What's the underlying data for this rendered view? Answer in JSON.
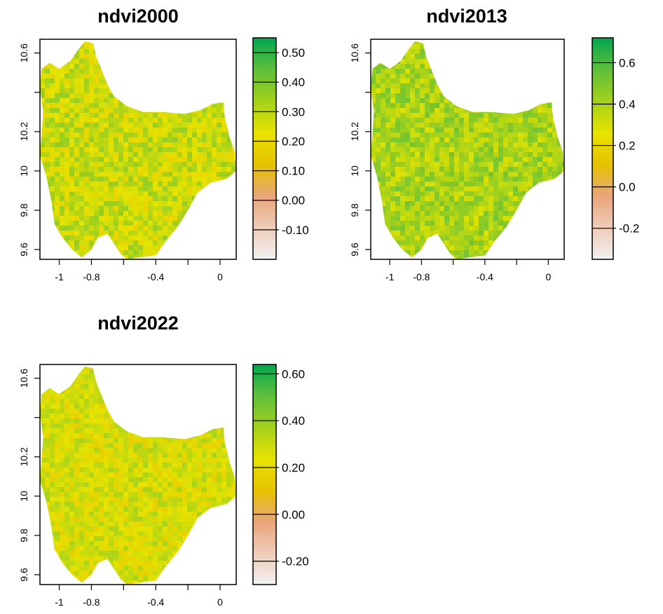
{
  "panels": [
    {
      "title": "ndvi2000",
      "x_ticks": [
        {
          "value": -1,
          "label": "-1"
        },
        {
          "value": -0.8,
          "label": "-0.8"
        },
        {
          "value": -0.6,
          "label": ""
        },
        {
          "value": -0.4,
          "label": "-0.4"
        },
        {
          "value": -0.2,
          "label": ""
        },
        {
          "value": 0,
          "label": "0"
        }
      ],
      "y_ticks": [
        {
          "value": 9.6,
          "label": "9.6"
        },
        {
          "value": 9.8,
          "label": "9.8"
        },
        {
          "value": 10,
          "label": "10"
        },
        {
          "value": 10.2,
          "label": "10.2"
        },
        {
          "value": 10.4,
          "label": ""
        },
        {
          "value": 10.6,
          "label": "10.6"
        }
      ],
      "legend": {
        "min": -0.2,
        "max": 0.55,
        "ticks": [
          {
            "value": 0.5,
            "label": "0.50"
          },
          {
            "value": 0.4,
            "label": "0.40"
          },
          {
            "value": 0.3,
            "label": "0.30"
          },
          {
            "value": 0.2,
            "label": "0.20"
          },
          {
            "value": 0.1,
            "label": "0.10"
          },
          {
            "value": 0.0,
            "label": "0.00"
          },
          {
            "value": -0.1,
            "label": "-0.10"
          }
        ]
      },
      "map_value_range": [
        0.18,
        0.36
      ]
    },
    {
      "title": "ndvi2013",
      "x_ticks": [
        {
          "value": -1,
          "label": "-1"
        },
        {
          "value": -0.8,
          "label": "-0.8"
        },
        {
          "value": -0.6,
          "label": ""
        },
        {
          "value": -0.4,
          "label": "-0.4"
        },
        {
          "value": -0.2,
          "label": ""
        },
        {
          "value": 0,
          "label": "0"
        }
      ],
      "y_ticks": [
        {
          "value": 9.6,
          "label": "9.6"
        },
        {
          "value": 9.8,
          "label": "9.8"
        },
        {
          "value": 10,
          "label": "10"
        },
        {
          "value": 10.2,
          "label": "10.2"
        },
        {
          "value": 10.4,
          "label": ""
        },
        {
          "value": 10.6,
          "label": "10.6"
        }
      ],
      "legend": {
        "min": -0.35,
        "max": 0.72,
        "ticks": [
          {
            "value": 0.6,
            "label": "0.6"
          },
          {
            "value": 0.4,
            "label": "0.4"
          },
          {
            "value": 0.2,
            "label": "0.2"
          },
          {
            "value": 0.0,
            "label": "0.0"
          },
          {
            "value": -0.2,
            "label": "-0.2"
          }
        ]
      },
      "map_value_range": [
        0.28,
        0.52
      ]
    },
    {
      "title": "ndvi2022",
      "x_ticks": [
        {
          "value": -1,
          "label": "-1"
        },
        {
          "value": -0.8,
          "label": "-0.8"
        },
        {
          "value": -0.6,
          "label": ""
        },
        {
          "value": -0.4,
          "label": "-0.4"
        },
        {
          "value": -0.2,
          "label": ""
        },
        {
          "value": 0,
          "label": "0"
        }
      ],
      "y_ticks": [
        {
          "value": 9.6,
          "label": "9.6"
        },
        {
          "value": 9.8,
          "label": "9.8"
        },
        {
          "value": 10,
          "label": "10"
        },
        {
          "value": 10.2,
          "label": "10.2"
        },
        {
          "value": 10.4,
          "label": ""
        },
        {
          "value": 10.6,
          "label": "10.6"
        }
      ],
      "legend": {
        "min": -0.3,
        "max": 0.64,
        "ticks": [
          {
            "value": 0.6,
            "label": "0.60"
          },
          {
            "value": 0.4,
            "label": "0.40"
          },
          {
            "value": 0.2,
            "label": "0.20"
          },
          {
            "value": 0.0,
            "label": "0.00"
          },
          {
            "value": -0.2,
            "label": "-0.20"
          }
        ]
      },
      "map_value_range": [
        0.16,
        0.36
      ]
    }
  ],
  "colors": {
    "ramp": [
      "#f2f2f2",
      "#eeccb9",
      "#e9a57a",
      "#e6c200",
      "#e7e300",
      "#a3d11c",
      "#5fbf3a",
      "#00a650"
    ],
    "axis": "#000000"
  }
}
